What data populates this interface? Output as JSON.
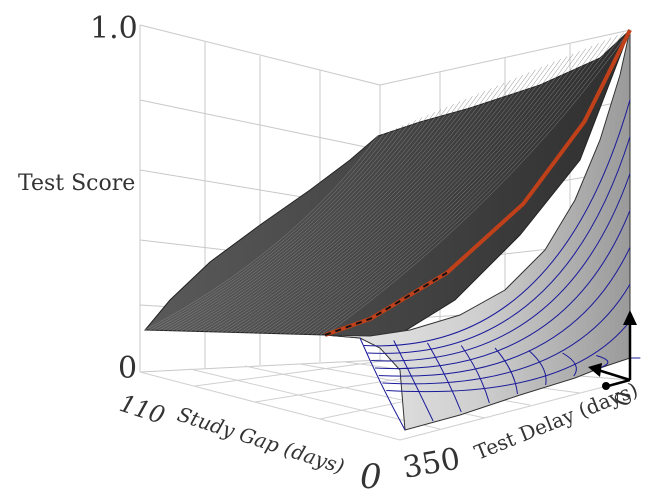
{
  "chart_data": {
    "type": "surface",
    "title": "",
    "zlabel": "Test Score",
    "zlim": [
      0,
      1.0
    ],
    "z_tick_labels": [
      "0",
      "1.0"
    ],
    "x_axis": {
      "label": "Study Gap (days)",
      "ticks": [
        "0",
        "110"
      ],
      "range": [
        0,
        110
      ]
    },
    "y_axis": {
      "label": "Test Delay (days)",
      "ticks": [
        "0",
        "350"
      ],
      "range": [
        0,
        350
      ]
    },
    "grid": true,
    "surface_colors": {
      "back_region": "#404040",
      "front_region": "#d6d6d6",
      "mesh": "#1a1a9a"
    },
    "highlight_curve": {
      "color": "#c0401a",
      "description_points": [
        [
          0,
          0.07
        ],
        [
          0.15,
          0.12
        ],
        [
          0.4,
          0.26
        ],
        [
          0.65,
          0.47
        ],
        [
          0.85,
          0.72
        ],
        [
          1.0,
          1.0
        ]
      ]
    },
    "orientation_arrows": {
      "color": "#000000"
    }
  }
}
